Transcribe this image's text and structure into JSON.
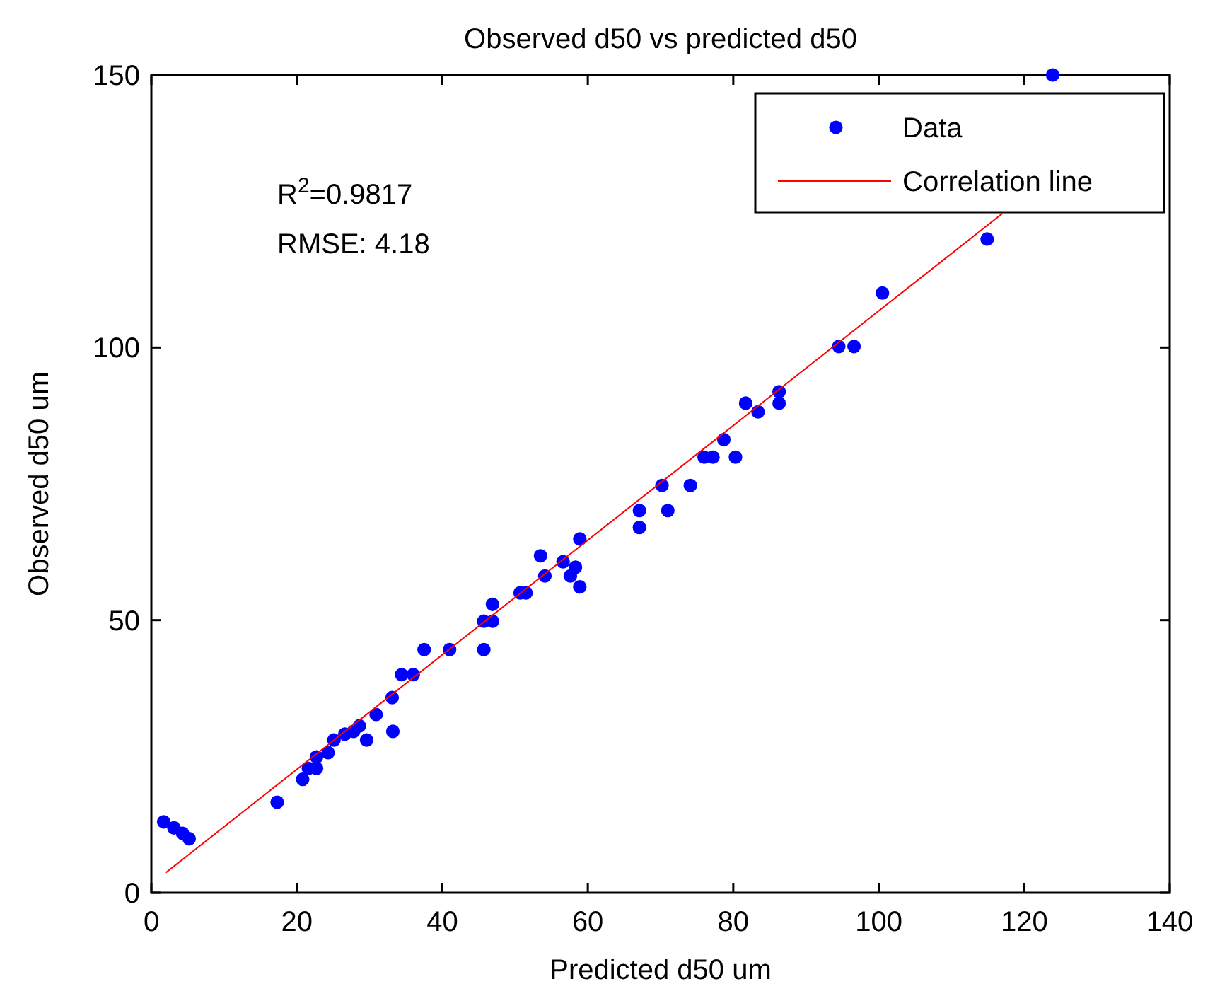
{
  "chart_data": {
    "type": "scatter",
    "title": "Observed d50 vs predicted d50",
    "xlabel": "Predicted d50 um",
    "ylabel": "Observed d50 um",
    "xlim": [
      0,
      140
    ],
    "xticks": [
      0,
      20,
      40,
      60,
      80,
      100,
      120,
      140
    ],
    "ylim": [
      0,
      150
    ],
    "yticks": [
      0,
      50,
      100,
      150
    ],
    "grid": false,
    "legend": "top right",
    "annotations": [
      "R$^{2}$=0.9817",
      "RMSE: 4.18"
    ],
    "series": [
      {
        "name": "Data",
        "marker": "circle",
        "color": "#0000ff",
        "x": [
          1.7,
          3.1,
          4.3,
          5.2,
          17.3,
          20.8,
          21.6,
          22.7,
          22.7,
          24.3,
          25.1,
          26.6,
          27.8,
          28.6,
          29.6,
          30.9,
          33.1,
          33.2,
          34.4,
          36.0,
          37.5,
          41.0,
          45.7,
          45.7,
          46.9,
          46.9,
          50.7,
          51.5,
          53.5,
          54.1,
          56.6,
          57.6,
          58.3,
          58.9,
          58.9,
          67.1,
          67.1,
          71.0,
          70.2,
          74.1,
          76.0,
          77.2,
          80.3,
          78.7,
          81.7,
          83.4,
          86.3,
          86.3,
          94.5,
          96.6,
          100.5,
          114.9,
          123.9
        ],
        "values": [
          13.0,
          11.9,
          10.9,
          9.9,
          16.6,
          20.8,
          22.8,
          22.8,
          24.9,
          25.7,
          28.0,
          29.1,
          29.6,
          30.6,
          28.0,
          32.7,
          35.8,
          29.6,
          40.0,
          40.0,
          44.6,
          44.6,
          44.6,
          49.8,
          49.8,
          52.9,
          55.0,
          55.0,
          61.8,
          58.1,
          60.7,
          58.1,
          59.7,
          56.1,
          64.9,
          67.0,
          70.1,
          70.1,
          74.7,
          74.7,
          79.9,
          79.9,
          79.9,
          83.1,
          89.8,
          88.2,
          91.9,
          89.8,
          100.2,
          100.2,
          110.0,
          119.9,
          150.0
        ]
      },
      {
        "name": "Correlation line",
        "type": "line",
        "color": "#ff0000",
        "marker": "none",
        "line_style": "solid",
        "x": [
          2,
          117
        ],
        "values": [
          3.7,
          124.6
        ]
      }
    ]
  }
}
